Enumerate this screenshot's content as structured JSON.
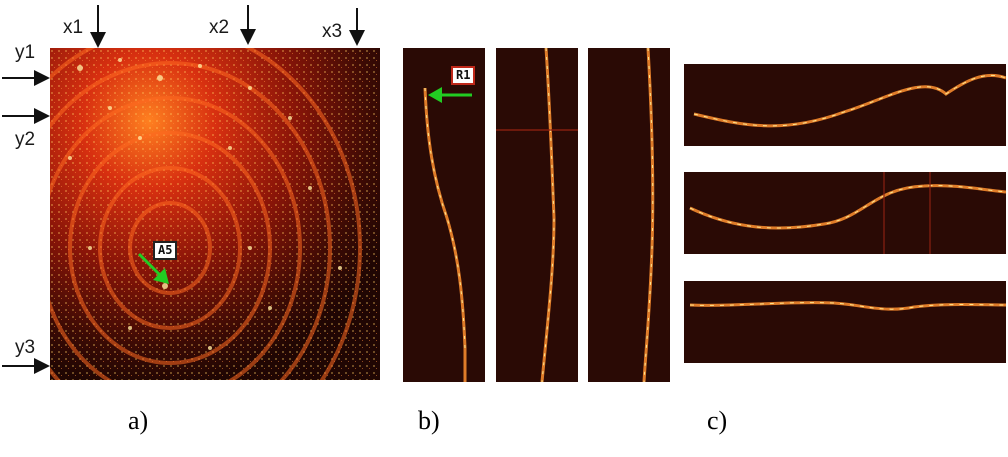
{
  "figure": {
    "panel_a": {
      "x_markers": [
        "x1",
        "x2",
        "x3"
      ],
      "y_markers": [
        "y1",
        "y2",
        "y3"
      ],
      "annotation": "A5",
      "caption": "a)"
    },
    "panel_b": {
      "annotation": "R1",
      "caption": "b)"
    },
    "panel_c": {
      "caption": "c)"
    },
    "colors": {
      "background": "#2a0a05",
      "hot": "#ffe080",
      "mid": "#e0401a",
      "arrow_black": "#111111",
      "arrow_green": "#22cc22"
    }
  }
}
